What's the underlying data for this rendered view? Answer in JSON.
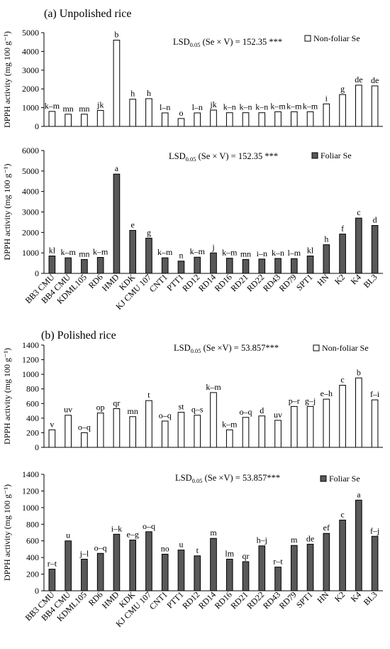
{
  "figure": {
    "section_a_title": "(a) Unpolished rice",
    "section_b_title": "(b) Polished rice"
  },
  "chart_data": [
    {
      "type": "bar",
      "section": "a",
      "ylabel": "DPPH activity (mg 100 g⁻¹)",
      "ylim": [
        0,
        5000
      ],
      "yticks": [
        0,
        1000,
        2000,
        3000,
        4000,
        5000
      ],
      "lsd": {
        "prefix": "LSD",
        "sub": "0.05",
        "text": " (Se × V) = 152.35 ***"
      },
      "legend": {
        "label": "Non-foliar Se",
        "color": "#ffffff"
      },
      "categories": [
        "BB3 CMU",
        "BB4 CMU",
        "KDML105",
        "RD6",
        "HMD",
        "KDK",
        "KJ CMU 107",
        "CNT1",
        "PTT1",
        "RD12",
        "RD14",
        "RD16",
        "RD21",
        "RD22",
        "RD43",
        "RD79",
        "SPT1",
        "HN",
        "K2",
        "K4",
        "BL3"
      ],
      "series": [
        {
          "name": "Non-foliar Se",
          "color": "#ffffff",
          "values": [
            800,
            650,
            650,
            850,
            4600,
            1450,
            1480,
            720,
            420,
            720,
            870,
            730,
            730,
            730,
            780,
            780,
            780,
            1200,
            1700,
            2200,
            2160
          ],
          "letters": [
            "k–m",
            "mn",
            "mn",
            "jk",
            "b",
            "h",
            "h",
            "l–n",
            "o",
            "l–n",
            "jk",
            "k–n",
            "k–n",
            "k–n",
            "k–m",
            "k–m",
            "k–m",
            "i",
            "g",
            "de",
            "de"
          ]
        }
      ]
    },
    {
      "type": "bar",
      "section": "a",
      "ylabel": "DPPH activity (mg 100 g⁻¹)",
      "ylim": [
        0,
        6000
      ],
      "yticks": [
        0,
        1000,
        2000,
        3000,
        4000,
        5000,
        6000
      ],
      "lsd": {
        "prefix": "LSD",
        "sub": "0.05",
        "text": " (Se × V) = 152.35 ***"
      },
      "legend": {
        "label": "Foliar Se",
        "color": "#595959"
      },
      "categories": [
        "BB3 CMU",
        "BB4 CMU",
        "KDML105",
        "RD6",
        "HMD",
        "KDK",
        "KJ CMU 107",
        "CNT1",
        "PTT1",
        "RD12",
        "RD14",
        "RD16",
        "RD21",
        "RD22",
        "RD43",
        "RD79",
        "SPT1",
        "HN",
        "K2",
        "K4",
        "BL3"
      ],
      "series": [
        {
          "name": "Foliar Se",
          "color": "#595959",
          "values": [
            850,
            760,
            680,
            780,
            4850,
            2100,
            1720,
            760,
            600,
            790,
            1000,
            740,
            680,
            700,
            730,
            720,
            850,
            1400,
            1920,
            2700,
            2340
          ],
          "letters": [
            "kl",
            "k–m",
            "mn",
            "k–m",
            "a",
            "e",
            "g",
            "k–m",
            "n",
            "k–m",
            "j",
            "k–m",
            "mn",
            "i–n",
            "k–n",
            "l–m",
            "kl",
            "h",
            "f",
            "c",
            "d"
          ]
        }
      ]
    },
    {
      "type": "bar",
      "section": "b",
      "ylabel": "DPPH activity (mg 100 g⁻¹)",
      "ylim": [
        0,
        1400
      ],
      "yticks": [
        0,
        200,
        400,
        600,
        800,
        1000,
        1200,
        1400
      ],
      "lsd": {
        "prefix": "LSD",
        "sub": "0.05",
        "text": " (Se ×V) = 53.857***"
      },
      "legend": {
        "label": "Non-foliar Se",
        "color": "#ffffff"
      },
      "categories": [
        "BB3 CMU",
        "BB4 CMU",
        "KDML105",
        "RD6",
        "HMD",
        "KDK",
        "KJ CMU 107",
        "CNT1",
        "PTT1",
        "RD12",
        "RD14",
        "RD16",
        "RD21",
        "RD22",
        "RD43",
        "RD79",
        "SPT1",
        "HN",
        "K2",
        "K4",
        "BL3"
      ],
      "series": [
        {
          "name": "Non-foliar Se",
          "color": "#ffffff",
          "values": [
            240,
            440,
            200,
            470,
            530,
            420,
            640,
            360,
            480,
            440,
            750,
            240,
            410,
            430,
            370,
            560,
            560,
            660,
            850,
            950,
            650
          ],
          "letters": [
            "v",
            "uv",
            "o–q",
            "op",
            "qr",
            "mn",
            "t",
            "o–q",
            "st",
            "q–s",
            "k–m",
            "k–m",
            "o–q",
            "d",
            "uv",
            "p–r",
            "g–j",
            "e–h",
            "c",
            "b",
            "f–i"
          ]
        }
      ]
    },
    {
      "type": "bar",
      "section": "b",
      "ylabel": "DPPH activity (mg 100 g⁻¹)",
      "ylim": [
        0,
        1400
      ],
      "yticks": [
        0,
        200,
        400,
        600,
        800,
        1000,
        1200,
        1400
      ],
      "lsd": {
        "prefix": "LSD",
        "sub": "0.05",
        "text": " (Se ×V) = 53.857***"
      },
      "legend": {
        "label": "Foliar Se",
        "color": "#595959"
      },
      "categories": [
        "BB3 CMU",
        "BB4 CMU",
        "KDML105",
        "RD6",
        "HMD",
        "KDK",
        "KJ CMU 107",
        "CNT1",
        "PTT1",
        "RD12",
        "RD14",
        "RD16",
        "RD21",
        "RD22",
        "RD43",
        "RD79",
        "SPT1",
        "HN",
        "K2",
        "K4",
        "BL3"
      ],
      "series": [
        {
          "name": "Foliar Se",
          "color": "#595959",
          "values": [
            260,
            600,
            380,
            450,
            680,
            610,
            710,
            440,
            490,
            420,
            630,
            380,
            350,
            540,
            285,
            545,
            560,
            690,
            850,
            1090,
            655
          ],
          "letters": [
            "r–t",
            "u",
            "j–l",
            "o–q",
            "i–k",
            "e–g",
            "o–q",
            "no",
            "u",
            "t",
            "m",
            "lm",
            "qr",
            "h–j",
            "r–t",
            "m",
            "de",
            "ef",
            "c",
            "a",
            "f–j"
          ]
        }
      ]
    }
  ]
}
